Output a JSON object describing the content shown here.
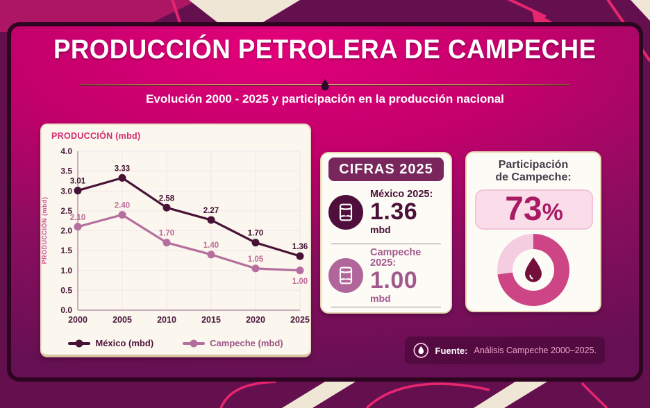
{
  "header": {
    "title": "PRODUCCIÓN PETROLERA DE CAMPECHE",
    "subtitle": "Evolución 2000 - 2025 y participación en la producción nacional"
  },
  "chart_data": {
    "type": "line",
    "title": "PRODUCCIÓN (mbd)",
    "ylabel": "PRODUCCIÓN (mbd)",
    "x": [
      2000,
      2005,
      2010,
      2015,
      2020,
      2025
    ],
    "ylim": [
      0,
      4
    ],
    "ytick_step": 0.5,
    "grid": true,
    "legend_position": "bottom",
    "series": [
      {
        "name": "México (mbd)",
        "color": "#471235",
        "label_color": "#3f1031",
        "values": [
          3.01,
          3.33,
          2.58,
          2.27,
          1.7,
          1.36
        ],
        "label_dy": [
          -10,
          -10,
          -10,
          -10,
          -10,
          -10
        ]
      },
      {
        "name": "Campeche (mbd)",
        "color": "#b46f9e",
        "label_color": "#bf6a99",
        "values": [
          2.1,
          2.4,
          1.7,
          1.4,
          1.05,
          1.0
        ],
        "label_dy": [
          -10,
          -10,
          -10,
          -10,
          -10,
          19
        ]
      }
    ],
    "axis_color": "#bb93a9",
    "grid_color": "#f3e4ec",
    "tick_color": "#4b1a3c"
  },
  "cifras": {
    "header": "CIFRAS 2025",
    "items": [
      {
        "label": "México 2025:",
        "value": "1.36",
        "unit": "mbd",
        "color": "#4a1038",
        "icon_bg": "#4f0e3b",
        "icon": "oil-barrel"
      },
      {
        "label": "Campeche 2025:",
        "value": "1.00",
        "unit": "mbd",
        "color": "#a2588d",
        "icon_bg": "#b0669a",
        "icon": "oil-barrel"
      }
    ]
  },
  "participation": {
    "title_line1": "Participación",
    "title_line2": "de Campeche:",
    "percent": 73,
    "percent_number": "73",
    "percent_sign": "%",
    "donut": {
      "filled_color": "#cd4585",
      "track_color": "#f4cde0",
      "drop_color": "#740f3c"
    }
  },
  "fuente": {
    "label": "Fuente:",
    "text": "Análisis Campeche 2000–2025."
  },
  "colors": {
    "panel_top": "#e20079",
    "panel_bottom": "#641052",
    "panel_border": "#2d0521",
    "gold_line": "#d9ab6b",
    "card_bg": "#fbf6ee",
    "cifras_header_bg": "#78265c",
    "pct_box_bg": "#fbdde9",
    "pct_text": "#a81a64",
    "background_dark": "#65104e",
    "background_magenta": "#ad1565",
    "background_cream": "#efe6d6",
    "background_pink_line": "#e7266f"
  }
}
